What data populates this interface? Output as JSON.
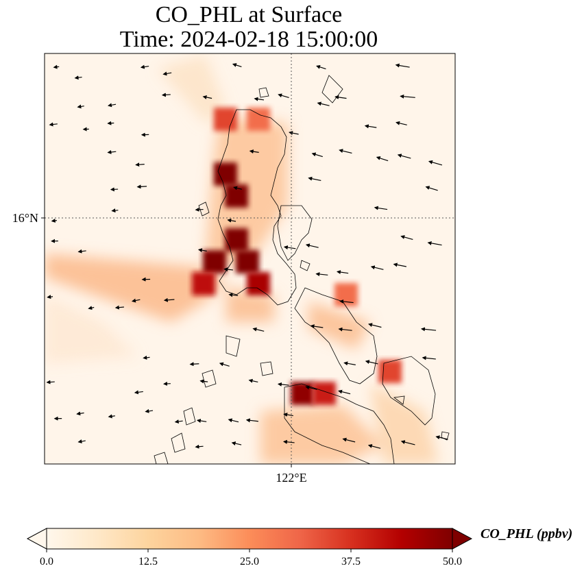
{
  "chart_data": {
    "type": "heatmap",
    "title_line1": "CO_PHL at Surface",
    "title_line2": "Time: 2024-02-18 15:00:00",
    "variable": "CO_PHL",
    "units": "ppbv",
    "colorbar_label": "CO_PHL (ppbv)",
    "colorbar_ticks": [
      "0.0",
      "12.5",
      "25.0",
      "37.5",
      "50.0"
    ],
    "colorbar_range": [
      0,
      50
    ],
    "colorbar_extend": "both",
    "colormap": "OrRd",
    "colormap_stops": [
      "#fff7ec",
      "#fee8c8",
      "#fdd49e",
      "#fdbb84",
      "#fc8d59",
      "#ef6548",
      "#d7301f",
      "#b30000",
      "#7f0000"
    ],
    "xaxis": {
      "ticks": [
        "122°E"
      ]
    },
    "yaxis": {
      "ticks": [
        "16°N"
      ]
    },
    "gridlines": "dotted at 122°E and 16°N",
    "field_description": "CO concentration plumes over northern Philippines with wind vectors",
    "concentration_cells": [
      {
        "lon": 121.4,
        "lat": 16.4,
        "value": 55
      },
      {
        "lon": 121.5,
        "lat": 16.2,
        "value": 52
      },
      {
        "lon": 121.5,
        "lat": 15.8,
        "value": 55
      },
      {
        "lon": 121.6,
        "lat": 15.6,
        "value": 58
      },
      {
        "lon": 121.3,
        "lat": 15.6,
        "value": 50
      },
      {
        "lon": 121.2,
        "lat": 15.4,
        "value": 42
      },
      {
        "lon": 121.7,
        "lat": 15.4,
        "value": 45
      },
      {
        "lon": 121.4,
        "lat": 16.9,
        "value": 35
      },
      {
        "lon": 121.7,
        "lat": 16.9,
        "value": 30
      },
      {
        "lon": 122.5,
        "lat": 15.3,
        "value": 30
      },
      {
        "lon": 122.1,
        "lat": 14.4,
        "value": 48
      },
      {
        "lon": 122.3,
        "lat": 14.4,
        "value": 40
      },
      {
        "lon": 122.9,
        "lat": 14.6,
        "value": 35
      }
    ]
  }
}
